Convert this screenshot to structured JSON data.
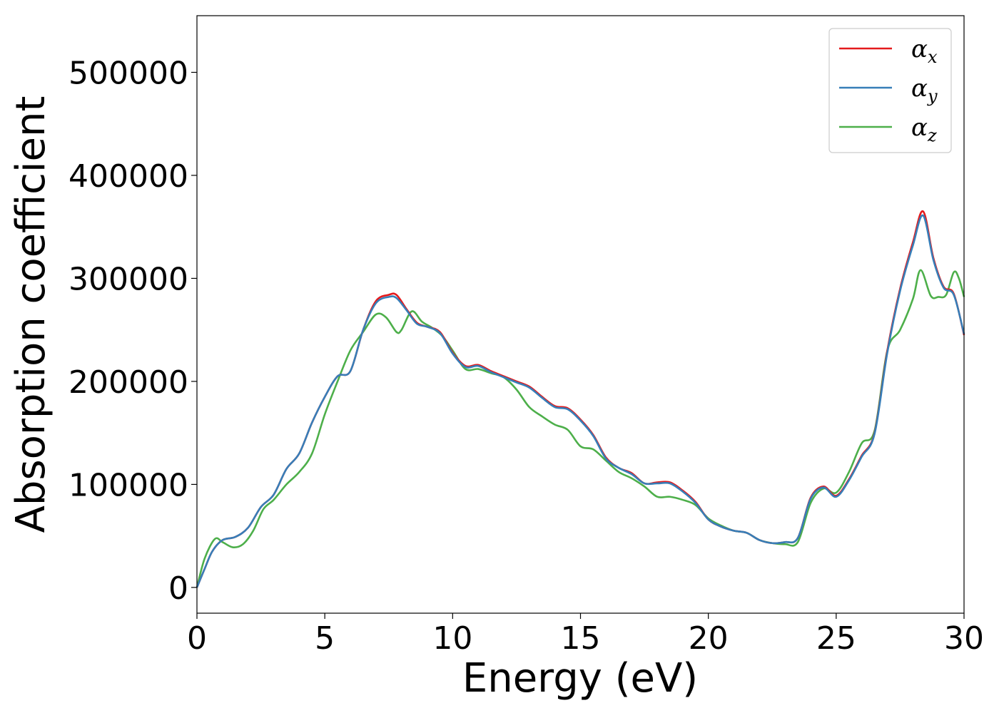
{
  "chart_data": {
    "type": "line",
    "xlabel": "Energy (eV)",
    "ylabel": "Absorption coefficient",
    "xlim": [
      0,
      30
    ],
    "ylim": [
      -25000,
      555000
    ],
    "xticks": [
      0,
      5,
      10,
      15,
      20,
      25,
      30
    ],
    "xtick_labels": [
      "0",
      "5",
      "10",
      "15",
      "20",
      "25",
      "30"
    ],
    "yticks": [
      0,
      100000,
      200000,
      300000,
      400000,
      500000
    ],
    "ytick_labels": [
      "0",
      "100000",
      "200000",
      "300000",
      "400000",
      "500000"
    ],
    "grid": false,
    "legend_position": "top-right",
    "series": [
      {
        "name": "α",
        "subscript": "x",
        "color": "#e41a1c",
        "x": [
          0,
          0.3,
          0.6,
          1.0,
          1.5,
          2.0,
          2.5,
          3.0,
          3.5,
          4.0,
          4.5,
          5.0,
          5.5,
          6.0,
          6.5,
          7.0,
          7.5,
          7.8,
          8.2,
          8.6,
          9.0,
          9.5,
          10.0,
          10.5,
          11.0,
          11.5,
          12.0,
          12.5,
          13.0,
          13.5,
          14.0,
          14.5,
          15.0,
          15.5,
          16.0,
          16.5,
          17.0,
          17.5,
          18.0,
          18.5,
          19.0,
          19.5,
          20.0,
          20.5,
          21.0,
          21.5,
          22.0,
          22.5,
          23.0,
          23.5,
          24.0,
          24.5,
          25.0,
          25.5,
          26.0,
          26.5,
          27.0,
          27.5,
          28.0,
          28.4,
          28.8,
          29.2,
          29.6,
          30.0
        ],
        "y": [
          0,
          18000,
          35000,
          46000,
          49000,
          58000,
          78000,
          90000,
          115000,
          130000,
          160000,
          185000,
          205000,
          210000,
          250000,
          278000,
          284000,
          284000,
          270000,
          257000,
          253000,
          248000,
          228000,
          215000,
          216000,
          210000,
          205000,
          200000,
          195000,
          185000,
          176000,
          174000,
          163000,
          148000,
          126000,
          116000,
          111000,
          101000,
          102000,
          102000,
          94000,
          83000,
          66000,
          59000,
          55000,
          53000,
          46000,
          43000,
          44000,
          48000,
          87000,
          98000,
          89000,
          105000,
          128000,
          150000,
          230000,
          290000,
          335000,
          365000,
          320000,
          292000,
          285000,
          245000
        ]
      },
      {
        "name": "α",
        "subscript": "y",
        "color": "#377eb8",
        "x": [
          0,
          0.3,
          0.6,
          1.0,
          1.5,
          2.0,
          2.5,
          3.0,
          3.5,
          4.0,
          4.5,
          5.0,
          5.5,
          6.0,
          6.5,
          7.0,
          7.5,
          7.8,
          8.2,
          8.6,
          9.0,
          9.5,
          10.0,
          10.5,
          11.0,
          11.5,
          12.0,
          12.5,
          13.0,
          13.5,
          14.0,
          14.5,
          15.0,
          15.5,
          16.0,
          16.5,
          17.0,
          17.5,
          18.0,
          18.5,
          19.0,
          19.5,
          20.0,
          20.5,
          21.0,
          21.5,
          22.0,
          22.5,
          23.0,
          23.5,
          24.0,
          24.5,
          25.0,
          25.5,
          26.0,
          26.5,
          27.0,
          27.5,
          28.0,
          28.4,
          28.8,
          29.2,
          29.6,
          30.0
        ],
        "y": [
          0,
          18000,
          35000,
          46000,
          49000,
          58000,
          78000,
          90000,
          115000,
          130000,
          160000,
          185000,
          205000,
          210000,
          250000,
          276000,
          282000,
          281000,
          269000,
          256000,
          253000,
          247000,
          227000,
          214000,
          215000,
          209000,
          204000,
          199000,
          194000,
          184000,
          175000,
          173000,
          162000,
          147000,
          125000,
          116000,
          110000,
          101000,
          101000,
          101000,
          93000,
          82000,
          66000,
          59000,
          55000,
          53000,
          46000,
          43000,
          44000,
          48000,
          86000,
          97000,
          88000,
          104000,
          127000,
          149000,
          228000,
          288000,
          332000,
          361000,
          318000,
          291000,
          284000,
          246000
        ]
      },
      {
        "name": "α",
        "subscript": "z",
        "color": "#4daf4a",
        "x": [
          0,
          0.3,
          0.7,
          1.0,
          1.4,
          1.8,
          2.2,
          2.6,
          3.0,
          3.5,
          4.0,
          4.5,
          5.0,
          5.5,
          6.0,
          6.5,
          7.0,
          7.4,
          7.8,
          8.0,
          8.4,
          8.8,
          9.2,
          9.6,
          10.0,
          10.5,
          11.0,
          11.5,
          12.0,
          12.5,
          13.0,
          13.5,
          14.0,
          14.5,
          15.0,
          15.5,
          16.0,
          16.5,
          17.0,
          17.5,
          18.0,
          18.5,
          19.0,
          19.5,
          20.0,
          20.5,
          21.0,
          21.5,
          22.0,
          22.5,
          23.0,
          23.5,
          24.0,
          24.5,
          25.0,
          25.5,
          26.0,
          26.5,
          27.0,
          27.5,
          28.0,
          28.3,
          28.7,
          29.0,
          29.3,
          29.6,
          29.8,
          30.0
        ],
        "y": [
          0,
          28000,
          47000,
          44000,
          39000,
          42000,
          55000,
          76000,
          85000,
          100000,
          112000,
          130000,
          168000,
          200000,
          230000,
          248000,
          265000,
          262000,
          248000,
          250000,
          268000,
          258000,
          252000,
          244000,
          230000,
          212000,
          212000,
          208000,
          204000,
          192000,
          175000,
          166000,
          158000,
          153000,
          137000,
          134000,
          123000,
          112000,
          106000,
          98000,
          88000,
          88000,
          85000,
          80000,
          67000,
          60000,
          55000,
          53000,
          46000,
          43000,
          42000,
          44000,
          82000,
          96000,
          92000,
          112000,
          140000,
          152000,
          230000,
          250000,
          280000,
          308000,
          283000,
          282000,
          284000,
          306000,
          300000,
          282000
        ]
      }
    ]
  }
}
